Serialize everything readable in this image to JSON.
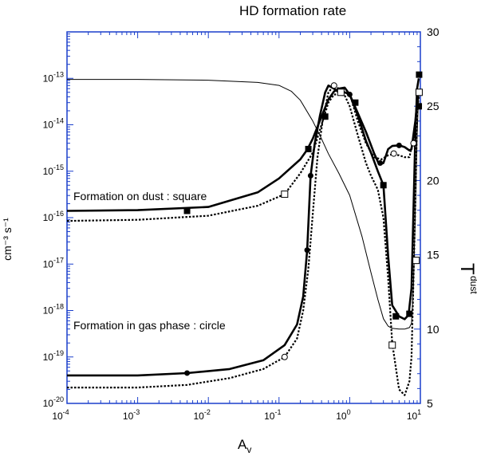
{
  "chart_data": {
    "type": "line",
    "title": "HD  formation rate",
    "xlabel": "A",
    "xlabel_sub": "v",
    "ylabel_left": "cm⁻³ s⁻¹",
    "ylabel_right": "T",
    "ylabel_right_sub": "dust",
    "x_scale": "log",
    "xlim": [
      0.0001,
      10
    ],
    "y_left_scale": "log",
    "y_left_lim": [
      1e-20,
      1e-12
    ],
    "y_right_lim": [
      5,
      30
    ],
    "x_ticks": [
      {
        "base": "10",
        "exp": "-4"
      },
      {
        "base": "10",
        "exp": "-3"
      },
      {
        "base": "10",
        "exp": "-2"
      },
      {
        "base": "10",
        "exp": "-1"
      },
      {
        "base": "10",
        "exp": "0"
      },
      {
        "base": "10",
        "exp": "1"
      }
    ],
    "y_left_ticks": [
      {
        "base": "10",
        "exp": "-13"
      },
      {
        "base": "10",
        "exp": "-14"
      },
      {
        "base": "10",
        "exp": "-15"
      },
      {
        "base": "10",
        "exp": "-16"
      },
      {
        "base": "10",
        "exp": "-17"
      },
      {
        "base": "10",
        "exp": "-18"
      },
      {
        "base": "10",
        "exp": "-19"
      },
      {
        "base": "10",
        "exp": "-20"
      }
    ],
    "y_right_ticks": [
      "30",
      "25",
      "20",
      "15",
      "10",
      "5"
    ],
    "annotations": [
      "Formation on dust : square",
      "Formation in gas phase :  circle"
    ],
    "axis_color": "#1a3fcc",
    "series": [
      {
        "style": "solid-thick",
        "axis": "left",
        "marker": "filled-square",
        "points": [
          [
            0.0001,
            1.4e-16
          ],
          [
            0.001,
            1.45e-16
          ],
          [
            0.01,
            1.7e-16
          ],
          [
            0.05,
            3.5e-16
          ],
          [
            0.1,
            7e-16
          ],
          [
            0.2,
            1.8e-15
          ],
          [
            0.25,
            2.9e-15
          ],
          [
            0.3,
            5e-15
          ],
          [
            0.4,
            1.5e-14
          ],
          [
            0.5,
            3.5e-14
          ],
          [
            0.6,
            5.2e-14
          ],
          [
            0.7,
            6e-14
          ],
          [
            0.85,
            6.3e-14
          ],
          [
            1.0,
            4.5e-14
          ],
          [
            1.3,
            1.6e-14
          ],
          [
            1.7,
            4.5e-15
          ],
          [
            2.0,
            2.5e-15
          ],
          [
            2.5,
            1e-15
          ],
          [
            3.0,
            5e-16
          ],
          [
            3.5,
            1.5e-17
          ],
          [
            4.0,
            1.3e-18
          ],
          [
            5.0,
            7.5e-19
          ],
          [
            6.0,
            6.5e-19
          ],
          [
            6.8,
            8e-19
          ],
          [
            7.5,
            3e-18
          ],
          [
            8.0,
            1.5e-16
          ],
          [
            8.5,
            6e-15
          ],
          [
            9.0,
            6e-14
          ],
          [
            9.5,
            1e-13
          ]
        ],
        "marker_points": [
          [
            0.005,
            1.4e-16
          ],
          [
            0.26,
            3e-15
          ],
          [
            0.45,
            1.5e-14
          ],
          [
            1.2,
            3e-14
          ],
          [
            3.0,
            5e-16
          ],
          [
            4.5,
            7.5e-19
          ],
          [
            7.0,
            8.5e-19
          ],
          [
            9.5,
            2.5e-14
          ],
          [
            9.6,
            1.2e-13
          ]
        ]
      },
      {
        "style": "dotted-thick",
        "axis": "left",
        "marker": "open-square",
        "points": [
          [
            0.0001,
            8.5e-17
          ],
          [
            0.001,
            9e-17
          ],
          [
            0.01,
            1.1e-16
          ],
          [
            0.05,
            1.8e-16
          ],
          [
            0.12,
            3.2e-16
          ],
          [
            0.2,
            9e-16
          ],
          [
            0.3,
            2.5e-15
          ],
          [
            0.4,
            1e-14
          ],
          [
            0.5,
            3e-14
          ],
          [
            0.6,
            4.5e-14
          ],
          [
            0.7,
            4.5e-14
          ],
          [
            0.85,
            4.3e-14
          ],
          [
            1.0,
            2.5e-14
          ],
          [
            1.3,
            6e-15
          ],
          [
            1.7,
            1.5e-15
          ],
          [
            2.0,
            8e-16
          ],
          [
            2.5,
            4e-16
          ],
          [
            3.0,
            1e-16
          ],
          [
            3.5,
            5e-18
          ],
          [
            4.0,
            2e-19
          ],
          [
            5.0,
            2e-20
          ],
          [
            6.0,
            1.5e-20
          ],
          [
            7.0,
            3e-20
          ],
          [
            7.5,
            1e-19
          ],
          [
            8.0,
            5e-18
          ],
          [
            8.5,
            2e-16
          ],
          [
            9.0,
            1.5e-14
          ],
          [
            9.5,
            5e-14
          ]
        ],
        "marker_points": [
          [
            0.12,
            3.2e-16
          ],
          [
            0.75,
            5e-14
          ],
          [
            4.0,
            1.8e-19
          ],
          [
            8.7,
            1.2e-17
          ],
          [
            9.6,
            5e-14
          ]
        ]
      },
      {
        "style": "solid-thick",
        "axis": "left",
        "marker": "filled-circle",
        "points": [
          [
            0.0001,
            4e-20
          ],
          [
            0.001,
            4e-20
          ],
          [
            0.005,
            4.5e-20
          ],
          [
            0.02,
            5.5e-20
          ],
          [
            0.06,
            8.5e-20
          ],
          [
            0.12,
            1.8e-19
          ],
          [
            0.18,
            5e-19
          ],
          [
            0.22,
            2e-18
          ],
          [
            0.25,
            2e-17
          ],
          [
            0.28,
            8e-16
          ],
          [
            0.32,
            4e-15
          ],
          [
            0.38,
            1.6e-14
          ],
          [
            0.45,
            5e-14
          ],
          [
            0.5,
            7e-14
          ],
          [
            0.6,
            6e-14
          ],
          [
            0.7,
            5e-14
          ],
          [
            0.85,
            5e-14
          ],
          [
            1.0,
            4.5e-14
          ],
          [
            1.3,
            1.8e-14
          ],
          [
            1.7,
            7e-15
          ],
          [
            2.2,
            2.5e-15
          ],
          [
            2.6,
            1.4e-15
          ],
          [
            3.0,
            1.5e-15
          ],
          [
            3.5,
            3e-15
          ],
          [
            4.0,
            3.5e-15
          ],
          [
            5.0,
            3.6e-15
          ],
          [
            6.0,
            3.3e-15
          ],
          [
            7.0,
            2.8e-15
          ],
          [
            7.5,
            3e-15
          ],
          [
            8.5,
            1.2e-14
          ],
          [
            9.0,
            3e-14
          ],
          [
            9.5,
            5e-14
          ]
        ],
        "marker_points": [
          [
            0.005,
            4.5e-20
          ],
          [
            0.25,
            2e-17
          ],
          [
            0.28,
            8e-16
          ],
          [
            1.0,
            4.5e-14
          ],
          [
            2.7,
            1.5e-15
          ],
          [
            5.0,
            3.6e-15
          ],
          [
            9.5,
            2.5e-14
          ]
        ]
      },
      {
        "style": "dotted-thick",
        "axis": "left",
        "marker": "open-circle",
        "points": [
          [
            0.0001,
            2.2e-20
          ],
          [
            0.001,
            2.2e-20
          ],
          [
            0.005,
            2.5e-20
          ],
          [
            0.02,
            3.5e-20
          ],
          [
            0.06,
            5.5e-20
          ],
          [
            0.12,
            1e-19
          ],
          [
            0.18,
            2.5e-19
          ],
          [
            0.22,
            1e-18
          ],
          [
            0.26,
            8e-18
          ],
          [
            0.3,
            1.2e-16
          ],
          [
            0.35,
            2e-15
          ],
          [
            0.42,
            1.4e-14
          ],
          [
            0.5,
            5e-14
          ],
          [
            0.6,
            7e-14
          ],
          [
            0.7,
            6e-14
          ],
          [
            0.85,
            5e-14
          ],
          [
            1.0,
            4.8e-14
          ],
          [
            1.3,
            1.2e-14
          ],
          [
            1.7,
            4e-15
          ],
          [
            2.2,
            2e-15
          ],
          [
            2.8,
            1.8e-15
          ],
          [
            3.5,
            2.2e-15
          ],
          [
            4.0,
            2.3e-15
          ],
          [
            5.0,
            2.2e-15
          ],
          [
            6.0,
            2e-15
          ],
          [
            7.0,
            2e-15
          ],
          [
            8.0,
            5e-15
          ],
          [
            9.0,
            2e-14
          ],
          [
            9.5,
            4e-14
          ]
        ],
        "marker_points": [
          [
            0.12,
            1e-19
          ],
          [
            0.6,
            7e-14
          ],
          [
            4.2,
            2.4e-15
          ],
          [
            8.0,
            4e-15
          ]
        ]
      },
      {
        "style": "thin",
        "axis": "right",
        "points": [
          [
            0.0001,
            26.8
          ],
          [
            0.001,
            26.8
          ],
          [
            0.01,
            26.75
          ],
          [
            0.05,
            26.6
          ],
          [
            0.1,
            26.4
          ],
          [
            0.15,
            26.0
          ],
          [
            0.2,
            25.4
          ],
          [
            0.3,
            24.0
          ],
          [
            0.4,
            22.8
          ],
          [
            0.5,
            21.8
          ],
          [
            0.7,
            20.5
          ],
          [
            1.0,
            19.0
          ],
          [
            1.5,
            16.2
          ],
          [
            2.0,
            13.8
          ],
          [
            2.5,
            12.0
          ],
          [
            3.0,
            10.7
          ],
          [
            3.5,
            10.2
          ],
          [
            4.0,
            10.05
          ],
          [
            5.0,
            10.0
          ],
          [
            6.0,
            10.0
          ],
          [
            7.0,
            10.1
          ],
          [
            7.5,
            10.4
          ],
          [
            8.0,
            13.0
          ],
          [
            8.5,
            18.0
          ],
          [
            9.0,
            23.0
          ],
          [
            9.5,
            26.0
          ]
        ]
      }
    ]
  }
}
